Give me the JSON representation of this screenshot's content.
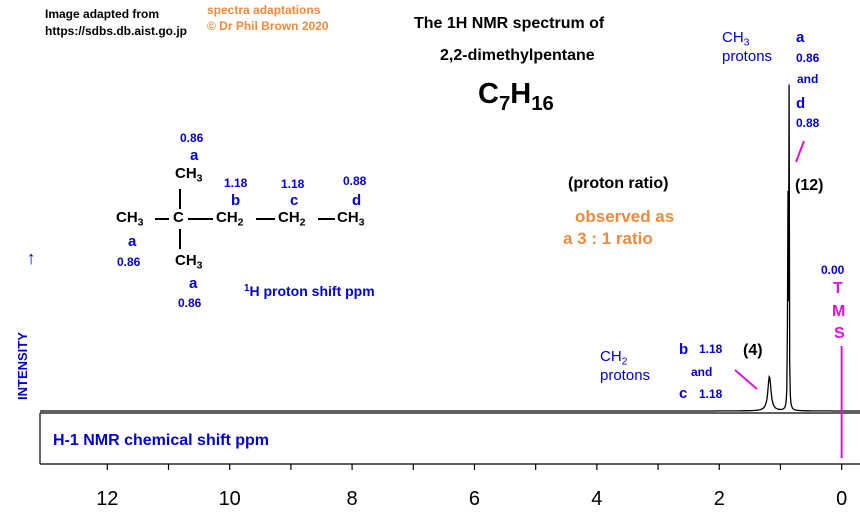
{
  "source_line1": "Image adapted from",
  "source_line2": "https://sdbs.db.aist.go.jp",
  "credit_line1": "spectra adaptations",
  "credit_line2": "© Dr Phil Brown 2020",
  "title_line1": "The 1H NMR spectrum of",
  "title_line2": "2,2-dimethylpentane",
  "formula": {
    "c": "C",
    "c_count": "7",
    "h": "H",
    "h_count": "16"
  },
  "structure": {
    "top_shift": "0.86",
    "top_label": "a",
    "top_group": "CH",
    "top_sub": "3",
    "left_group": "CH",
    "left_sub": "3",
    "left_label": "a",
    "left_shift": "0.86",
    "centre_atom": "C",
    "ch2_1": "CH",
    "ch2_1_sub": "2",
    "ch2_2": "CH",
    "ch2_2_sub": "2",
    "right_group": "CH",
    "right_sub": "3",
    "bottom_group": "CH",
    "bottom_sub": "3",
    "bottom_label": "a",
    "bottom_shift": "0.86",
    "b_shift": "1.18",
    "b_label": "b",
    "c_shift": "1.18",
    "c_label": "c",
    "d_shift": "0.88",
    "d_label": "d"
  },
  "proton_shift_label": {
    "sup": "1",
    "h": "H",
    "rest": " proton shift  ppm"
  },
  "proton_ratio": "(proton ratio)",
  "observed_line1": "observed as",
  "observed_line2": "a 3 : 1 ratio",
  "peak_ch3": {
    "group": "CH",
    "sub": "3",
    "word": "protons",
    "a_label": "a",
    "a_shift": "0.86",
    "and": "and",
    "d_label": "d",
    "d_shift": "0.88",
    "integration": "(12)"
  },
  "peak_ch2": {
    "group": "CH",
    "sub": "2",
    "word": "protons",
    "b_label": "b",
    "b_shift": "1.18",
    "and": "and",
    "c_label": "c",
    "c_shift": "1.18",
    "integration": "(4)"
  },
  "tms": {
    "shift": "0.00",
    "letters": [
      "T",
      "M",
      "S"
    ]
  },
  "y_axis_label": "INTENSITY",
  "y_axis_arrow": "→",
  "x_axis_label": "H-1 NMR chemical shift  ppm",
  "chart_data": {
    "type": "line",
    "xlabel": "H-1 NMR chemical shift  ppm",
    "ylabel": "INTENSITY",
    "xlim": [
      13.1,
      -0.3
    ],
    "x_reversed": true,
    "tick_labels": [
      "12",
      "10",
      "8",
      "6",
      "4",
      "2",
      "0"
    ],
    "ticks": [
      12,
      11,
      10,
      9,
      8,
      7,
      6,
      5,
      4,
      3,
      2,
      1,
      0
    ],
    "peaks": [
      {
        "ppm": 0.86,
        "relative_intensity": 1.0,
        "assignment": "a"
      },
      {
        "ppm": 0.88,
        "relative_intensity": 0.76,
        "assignment": "d"
      },
      {
        "ppm": 1.18,
        "relative_intensity": 0.09,
        "assignment": "b and c"
      }
    ],
    "integration_ratio": [
      12,
      4
    ],
    "tms_ppm": 0.0,
    "colors": {
      "line": "#000000",
      "tms": "#e010e0",
      "labels": "#0000d0",
      "note": "#f08a3c"
    }
  }
}
